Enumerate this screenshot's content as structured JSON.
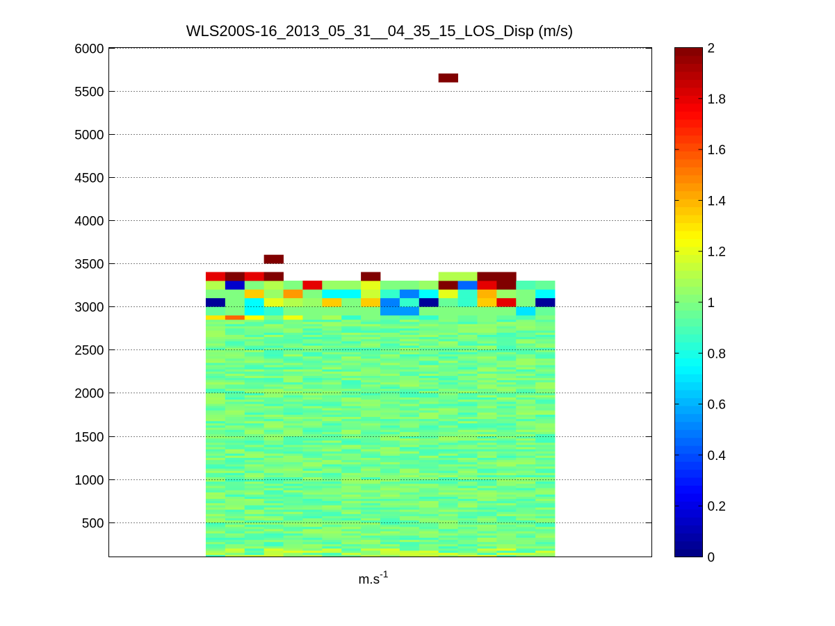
{
  "chart_data": {
    "type": "heatmap",
    "title": "WLS200S-16_2013_05_31__04_35_15_LOS_Disp (m/s)",
    "xlabel": {
      "base": "m.s",
      "sup": "-1"
    },
    "ylabel": "",
    "ylim": [
      100,
      6000
    ],
    "y_ticks": [
      500,
      1000,
      1500,
      2000,
      2500,
      3000,
      3500,
      4000,
      4500,
      5000,
      5500,
      6000
    ],
    "grid": "horizontal dotted",
    "colormap": "jet",
    "colorbar": {
      "clim": [
        0,
        2
      ],
      "ticks": [
        0,
        0.2,
        0.4,
        0.6,
        0.8,
        1,
        1.2,
        1.4,
        1.6,
        1.8,
        2
      ],
      "tick_labels": [
        "0",
        "0.2",
        "0.4",
        "0.6",
        "0.8",
        "1",
        "1.2",
        "1.4",
        "1.6",
        "1.8",
        "2"
      ]
    },
    "columns": 18,
    "x_extent": [
      5,
      23
    ],
    "x_axis_range": [
      0,
      28
    ],
    "bulk_range_m": [
      100,
      2850
    ],
    "bulk_value_range": [
      0.85,
      1.1
    ],
    "upper_rows": [
      {
        "altitude": 2900,
        "values": [
          1.3,
          1.55,
          1.25,
          1.0,
          1.22,
          1.0,
          1.08,
          0.85,
          1.0,
          0.95,
          0.9,
          0.85,
          1.0,
          0.95,
          1.0,
          0.95,
          0.9,
          1.0
        ]
      },
      {
        "altitude": 2950,
        "values": [
          0.95,
          1.0,
          0.75,
          0.85,
          1.0,
          1.0,
          1.0,
          1.0,
          1.0,
          0.55,
          0.55,
          1.0,
          1.0,
          1.0,
          1.0,
          1.0,
          0.7,
          0.95
        ]
      },
      {
        "altitude": 3050,
        "values": [
          0.05,
          1.0,
          0.75,
          1.2,
          1.1,
          1.05,
          1.35,
          1.0,
          1.35,
          0.5,
          0.85,
          0.05,
          0.95,
          0.85,
          1.35,
          1.8,
          1.0,
          0.05
        ]
      },
      {
        "altitude": 3150,
        "values": [
          1.0,
          1.0,
          1.35,
          1.05,
          1.45,
          1.0,
          0.75,
          0.75,
          1.15,
          0.85,
          0.5,
          0.75,
          1.2,
          0.85,
          1.4,
          1.05,
          1.0,
          0.75
        ]
      },
      {
        "altitude": 3250,
        "values": [
          1.1,
          0.15,
          1.0,
          1.1,
          1.0,
          1.8,
          1.05,
          1.05,
          1.2,
          1.0,
          1.0,
          1.05,
          2.0,
          0.45,
          1.8,
          2.0,
          0.9,
          0.95
        ]
      },
      {
        "altitude": 3350,
        "values": [
          1.8,
          2.0,
          1.8,
          2.0,
          null,
          null,
          null,
          null,
          2.0,
          null,
          null,
          null,
          1.1,
          1.1,
          2.0,
          2.0,
          null,
          null
        ]
      }
    ],
    "isolated_cells": [
      {
        "column": 3,
        "altitude": 3550,
        "value": 2.0
      },
      {
        "column": 12,
        "altitude": 5650,
        "value": 2.0
      }
    ]
  }
}
